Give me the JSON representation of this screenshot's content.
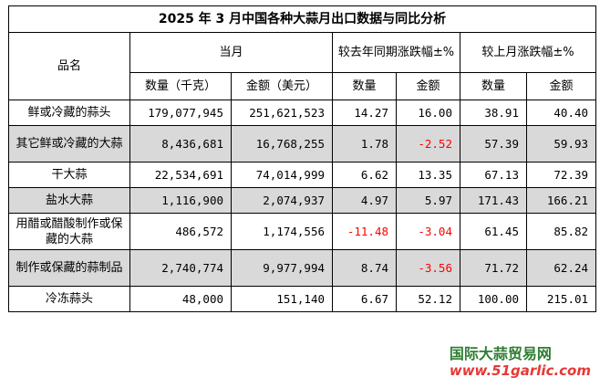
{
  "title": "2025 年 3 月中国各种大蒜月出口数据与同比分析",
  "headers": {
    "name": "品名",
    "current": "当月",
    "yoy": "较去年同期涨跌幅±%",
    "mom": "较上月涨跌幅±%",
    "qty_kg": "数量（千克）",
    "amt_usd": "金额（美元）",
    "qty": "数量",
    "amt": "金额",
    "qty2": "数量",
    "amt2": "金额"
  },
  "rows": [
    {
      "name": "鲜或冷藏的蒜头",
      "qty": "179,077,945",
      "amt": "251,621,523",
      "yoy_qty": "14.27",
      "yoy_amt": "16.00",
      "mom_qty": "38.91",
      "mom_amt": "40.40"
    },
    {
      "name": "其它鲜或冷藏的大蒜",
      "qty": "8,436,681",
      "amt": "16,768,255",
      "yoy_qty": "1.78",
      "yoy_amt": "-2.52",
      "mom_qty": "57.39",
      "mom_amt": "59.93"
    },
    {
      "name": "干大蒜",
      "qty": "22,534,691",
      "amt": "74,014,999",
      "yoy_qty": "6.62",
      "yoy_amt": "13.35",
      "mom_qty": "67.13",
      "mom_amt": "72.39"
    },
    {
      "name": "盐水大蒜",
      "qty": "1,116,900",
      "amt": "2,074,937",
      "yoy_qty": "4.97",
      "yoy_amt": "5.97",
      "mom_qty": "171.43",
      "mom_amt": "166.21"
    },
    {
      "name": "用醋或醋酸制作或保藏的大蒜",
      "qty": "486,572",
      "amt": "1,174,556",
      "yoy_qty": "-11.48",
      "yoy_amt": "-3.04",
      "mom_qty": "61.45",
      "mom_amt": "85.82"
    },
    {
      "name": "制作或保藏的蒜制品",
      "qty": "2,740,774",
      "amt": "9,977,994",
      "yoy_qty": "8.74",
      "yoy_amt": "-3.56",
      "mom_qty": "71.72",
      "mom_amt": "62.24"
    },
    {
      "name": "冷冻蒜头",
      "qty": "48,000",
      "amt": "151,140",
      "yoy_qty": "6.67",
      "yoy_amt": "52.12",
      "mom_qty": "100.00",
      "mom_amt": "215.01"
    }
  ],
  "colors": {
    "negative": "#ff0000",
    "shade": "#d9d9d9"
  },
  "watermark": {
    "name": "国际大蒜贸易网",
    "url": "www.51garlic.com"
  }
}
